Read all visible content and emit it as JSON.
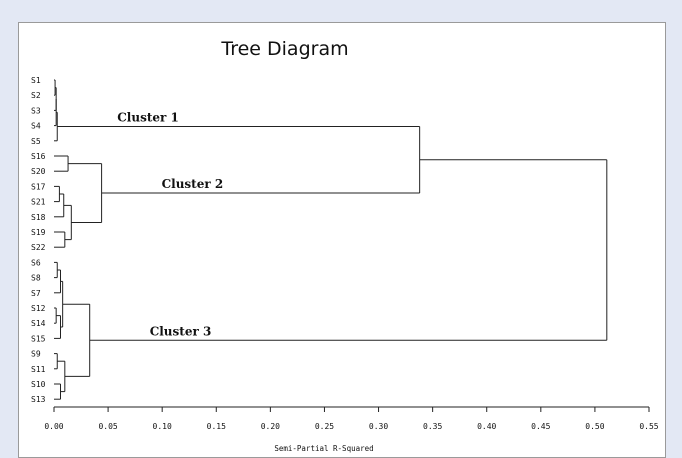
{
  "chart_data": {
    "type": "dendrogram",
    "title": "Tree Diagram",
    "xlabel": "Semi-Partial R-Squared",
    "xlim": [
      0,
      0.55
    ],
    "xticks": [
      "0.00",
      "0.05",
      "0.10",
      "0.15",
      "0.20",
      "0.25",
      "0.30",
      "0.35",
      "0.40",
      "0.45",
      "0.50",
      "0.55"
    ],
    "leaves": [
      "S1",
      "S2",
      "S3",
      "S4",
      "S5",
      "S16",
      "S20",
      "S17",
      "S21",
      "S18",
      "S19",
      "S22",
      "S6",
      "S8",
      "S7",
      "S12",
      "S14",
      "S15",
      "S9",
      "S11",
      "S10",
      "S13"
    ],
    "merges": [
      {
        "a": "S1",
        "b": "S2",
        "height": 0.001,
        "id": "n1"
      },
      {
        "a": "n1",
        "b": "S3",
        "height": 0.002,
        "id": "n2"
      },
      {
        "a": "n2",
        "b": "S4",
        "height": 0.002,
        "id": "n3"
      },
      {
        "a": "n3",
        "b": "S5",
        "height": 0.003,
        "id": "n4"
      },
      {
        "a": "S16",
        "b": "S20",
        "height": 0.013,
        "id": "n5"
      },
      {
        "a": "S17",
        "b": "S21",
        "height": 0.005,
        "id": "n6"
      },
      {
        "a": "n6",
        "b": "S18",
        "height": 0.009,
        "id": "n7"
      },
      {
        "a": "S19",
        "b": "S22",
        "height": 0.01,
        "id": "n8"
      },
      {
        "a": "n7",
        "b": "n8",
        "height": 0.016,
        "id": "n9"
      },
      {
        "a": "n5",
        "b": "n9",
        "height": 0.044,
        "id": "n10"
      },
      {
        "a": "n4",
        "b": "n10",
        "height": 0.338,
        "id": "n11"
      },
      {
        "a": "S6",
        "b": "S8",
        "height": 0.003,
        "id": "n12"
      },
      {
        "a": "n12",
        "b": "S7",
        "height": 0.006,
        "id": "n13"
      },
      {
        "a": "S12",
        "b": "S14",
        "height": 0.002,
        "id": "n14"
      },
      {
        "a": "n14",
        "b": "S15",
        "height": 0.006,
        "id": "n15"
      },
      {
        "a": "n13",
        "b": "n15",
        "height": 0.008,
        "id": "n16"
      },
      {
        "a": "S9",
        "b": "S11",
        "height": 0.003,
        "id": "n17"
      },
      {
        "a": "S10",
        "b": "S13",
        "height": 0.006,
        "id": "n18"
      },
      {
        "a": "n17",
        "b": "n18",
        "height": 0.01,
        "id": "n19"
      },
      {
        "a": "n16",
        "b": "n19",
        "height": 0.033,
        "id": "n20"
      },
      {
        "a": "n11",
        "b": "n20",
        "height": 0.511,
        "id": "n21"
      }
    ],
    "annotations": [
      {
        "text": "Cluster 1",
        "node": "n4"
      },
      {
        "text": "Cluster 2",
        "node": "n10"
      },
      {
        "text": "Cluster 3",
        "node": "n20"
      }
    ]
  }
}
